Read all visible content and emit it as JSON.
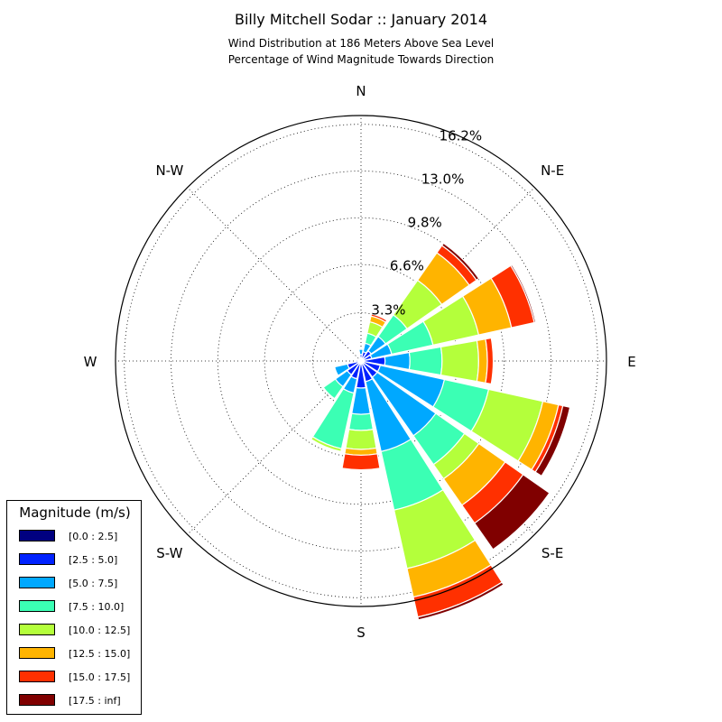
{
  "title": "Billy Mitchell Sodar :: January 2014",
  "subtitle_line1": "Wind Distribution at 186 Meters Above Sea Level",
  "subtitle_line2": "Percentage of Wind Magnitude Towards Direction",
  "chart_data": {
    "type": "windrose",
    "direction_labels": [
      {
        "label": "N",
        "angle": 0
      },
      {
        "label": "N-E",
        "angle": 45
      },
      {
        "label": "E",
        "angle": 90
      },
      {
        "label": "S-E",
        "angle": 135
      },
      {
        "label": "S",
        "angle": 180
      },
      {
        "label": "S-W",
        "angle": 225
      },
      {
        "label": "W",
        "angle": 270
      },
      {
        "label": "N-W",
        "angle": 315
      }
    ],
    "radial_ticks": [
      {
        "value": 3.3,
        "label": "3.3%"
      },
      {
        "value": 6.6,
        "label": "6.6%"
      },
      {
        "value": 9.8,
        "label": "9.8%"
      },
      {
        "value": 13.0,
        "label": "13.0%"
      },
      {
        "value": 16.2,
        "label": "16.2%"
      }
    ],
    "rmax": 16.8,
    "sector_width_deg": 20,
    "bins": [
      {
        "label": "[0.0 : 2.5]",
        "color": "#000080"
      },
      {
        "label": "[2.5 : 5.0]",
        "color": "#0022ff"
      },
      {
        "label": "[5.0 : 7.5]",
        "color": "#00a8ff"
      },
      {
        "label": "[7.5 : 10.0]",
        "color": "#3bffb4"
      },
      {
        "label": "[10.0 : 12.5]",
        "color": "#b4ff3b"
      },
      {
        "label": "[12.5 : 15.0]",
        "color": "#ffb400"
      },
      {
        "label": "[15.0 : 17.5]",
        "color": "#ff3000"
      },
      {
        "label": "[17.5 : inf]",
        "color": "#800000"
      }
    ],
    "sectors": [
      {
        "direction": 0,
        "values": [
          0.05,
          0.4,
          0.35,
          0,
          0,
          0,
          0,
          0
        ]
      },
      {
        "direction": 22.5,
        "values": [
          0.05,
          0.6,
          0.6,
          0.7,
          0.8,
          0.4,
          0.15,
          0
        ]
      },
      {
        "direction": 45,
        "values": [
          0.05,
          0.8,
          1.2,
          1.8,
          2.9,
          2.3,
          0.6,
          0.2
        ]
      },
      {
        "direction": 67.5,
        "values": [
          0.05,
          0.7,
          1.4,
          2.9,
          3.2,
          2.3,
          1.6,
          0.1
        ]
      },
      {
        "direction": 90,
        "values": [
          0.05,
          1.6,
          1.7,
          2.2,
          2.5,
          0.6,
          0.4,
          0
        ]
      },
      {
        "direction": 112.5,
        "values": [
          0.05,
          1.3,
          4.5,
          3.1,
          3.8,
          1.1,
          0.3,
          0.5
        ]
      },
      {
        "direction": 135,
        "values": [
          0.05,
          1.3,
          4.9,
          2.4,
          1.2,
          2.2,
          1.5,
          2.2
        ]
      },
      {
        "direction": 157.5,
        "values": [
          0.05,
          1.4,
          4.9,
          4.1,
          4.1,
          2.0,
          1.4,
          0.2
        ]
      },
      {
        "direction": 180,
        "values": [
          0.05,
          1.8,
          1.8,
          1.1,
          1.3,
          0.4,
          1.0,
          0
        ]
      },
      {
        "direction": 202.5,
        "values": [
          0.05,
          1.2,
          1.0,
          3.9,
          0.2,
          0,
          0,
          0
        ]
      },
      {
        "direction": 225,
        "values": [
          0.05,
          1.1,
          1.0,
          1.0,
          0,
          0,
          0,
          0
        ]
      },
      {
        "direction": 247.5,
        "values": [
          0.05,
          0.9,
          0.9,
          0,
          0,
          0,
          0,
          0
        ]
      },
      {
        "direction": 270,
        "values": [
          0.05,
          0.3,
          0,
          0,
          0,
          0,
          0,
          0
        ]
      },
      {
        "direction": 292.5,
        "values": [
          0.05,
          0.2,
          0,
          0,
          0,
          0,
          0,
          0
        ]
      },
      {
        "direction": 315,
        "values": [
          0.05,
          0.1,
          0,
          0,
          0,
          0,
          0,
          0
        ]
      },
      {
        "direction": 337.5,
        "values": [
          0.05,
          0.2,
          0,
          0,
          0,
          0,
          0,
          0
        ]
      }
    ],
    "legend_title": "Magnitude (m/s)",
    "legend_placement": "bottom-left",
    "grid": true
  }
}
